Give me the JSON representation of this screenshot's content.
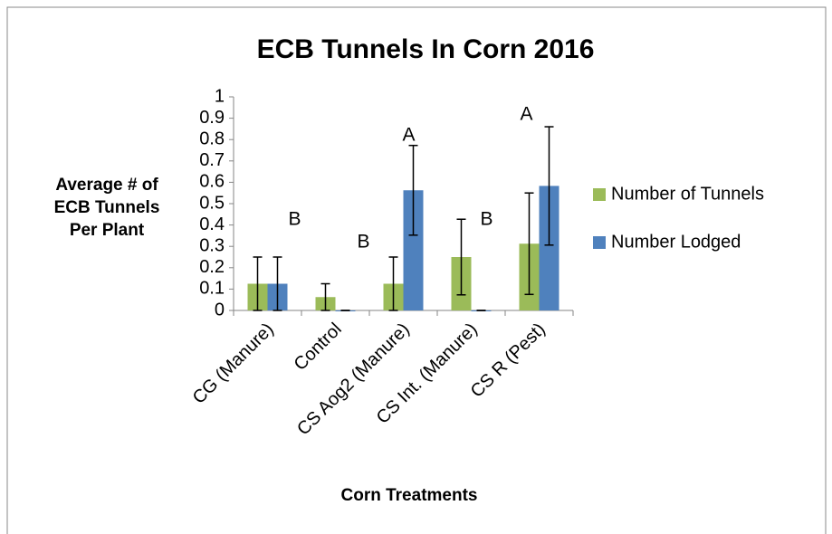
{
  "chart_data": {
    "type": "bar",
    "title": "ECB Tunnels In Corn 2016",
    "xlabel": "Corn Treatments",
    "ylabel": [
      "Average # of",
      "ECB Tunnels",
      "Per Plant"
    ],
    "categories": [
      "CG (Manure)",
      "Control",
      "CS Aog2 (Manure)",
      "CS Int. (Manure)",
      "CS R (Pest)"
    ],
    "series": [
      {
        "name": "Number of Tunnels",
        "color": "#9bbb59",
        "values": [
          0.125,
          0.0625,
          0.125,
          0.25,
          0.3125
        ],
        "errors": [
          0.125,
          0.0625,
          0.125,
          0.177,
          0.2375
        ]
      },
      {
        "name": "Number Lodged",
        "color": "#4f81bd",
        "values": [
          0.125,
          0,
          0.5625,
          0,
          0.583
        ],
        "errors": [
          0.125,
          0,
          0.21,
          0,
          0.277
        ]
      }
    ],
    "annotations": [
      "B",
      "B",
      "A",
      "B",
      "A"
    ],
    "ylim": [
      0,
      1
    ],
    "yticks": [
      0,
      0.1,
      0.2,
      0.3,
      0.4,
      0.5,
      0.6,
      0.7,
      0.8,
      0.9,
      1
    ],
    "grid": false,
    "legend": "right"
  }
}
